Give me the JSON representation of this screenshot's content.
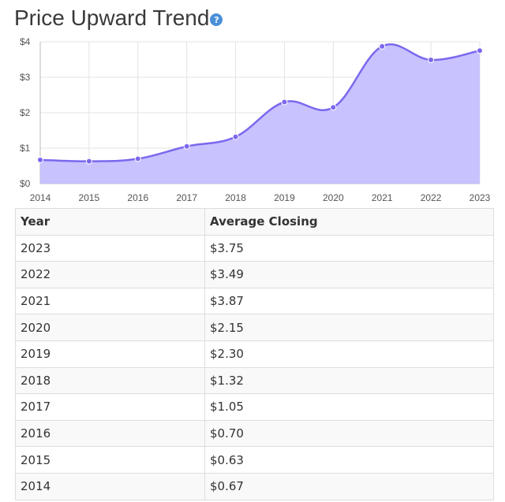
{
  "title": "Price Upward Trend",
  "help_icon": "?",
  "colors": {
    "line": "#7b68ee",
    "fill": "#c5bfff",
    "grid": "#e3e3e3",
    "help": "#4a8fd8"
  },
  "chart_data": {
    "type": "area",
    "x": [
      2014,
      2015,
      2016,
      2017,
      2018,
      2019,
      2020,
      2021,
      2022,
      2023
    ],
    "series": [
      {
        "values": [
          0.67,
          0.63,
          0.7,
          1.05,
          1.32,
          2.3,
          2.15,
          3.87,
          3.49,
          3.75
        ]
      }
    ],
    "y_ticks": [
      "$0",
      "$1",
      "$2",
      "$3",
      "$4"
    ],
    "ylim": [
      0,
      4
    ],
    "grid": true,
    "title": "",
    "xlabel": "",
    "ylabel": ""
  },
  "table": {
    "headers": [
      "Year",
      "Average Closing"
    ],
    "rows": [
      [
        "2023",
        "$3.75"
      ],
      [
        "2022",
        "$3.49"
      ],
      [
        "2021",
        "$3.87"
      ],
      [
        "2020",
        "$2.15"
      ],
      [
        "2019",
        "$2.30"
      ],
      [
        "2018",
        "$1.32"
      ],
      [
        "2017",
        "$1.05"
      ],
      [
        "2016",
        "$0.70"
      ],
      [
        "2015",
        "$0.63"
      ],
      [
        "2014",
        "$0.67"
      ]
    ]
  }
}
